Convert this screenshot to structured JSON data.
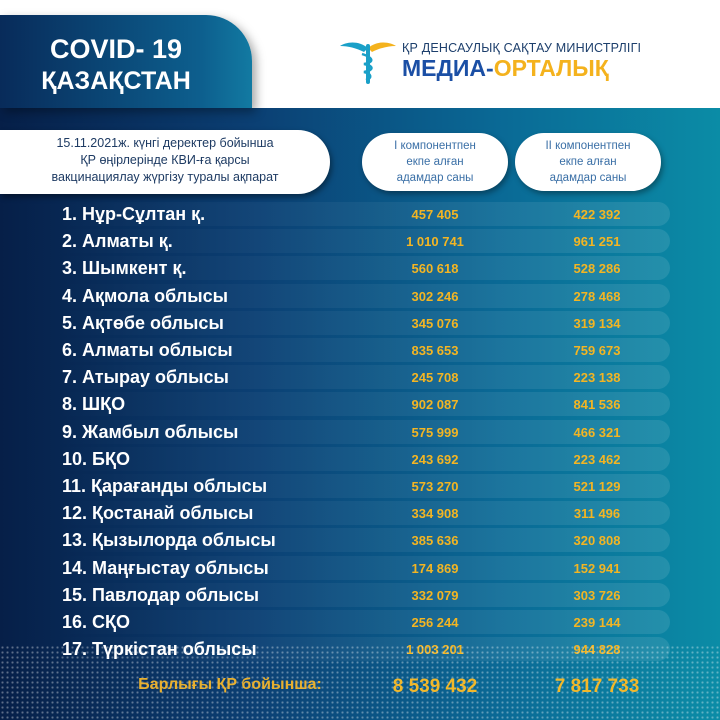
{
  "header": {
    "covid_line1": "COVID- 19",
    "covid_line2": "ҚАЗАҚСТАН",
    "ministry": "ҚР ДЕНСАУЛЫҚ САҚТАУ МИНИСТРЛІГІ",
    "media_part1": "МЕДИА-",
    "media_part2": "ОРТАЛЫҚ"
  },
  "info": {
    "line1": "15.11.2021ж. күнгі деректер бойынша",
    "line2": "ҚР өңірлерінде КВИ-ға қарсы",
    "line3": "вакцинациялау жүргізу туралы ақпарат"
  },
  "columns": [
    {
      "line1": "I компонентпен",
      "line2": "екпе алған",
      "line3": "адамдар саны"
    },
    {
      "line1": "II компонентпен",
      "line2": "екпе алған",
      "line3": "адамдар саны"
    }
  ],
  "rows": [
    {
      "name": "1. Нұр-Сұлтан қ.",
      "first": "457 405",
      "second": "422 392"
    },
    {
      "name": "2. Алматы қ.",
      "first": "1 010 741",
      "second": "961 251"
    },
    {
      "name": "3. Шымкент қ.",
      "first": "560 618",
      "second": "528 286"
    },
    {
      "name": "4. Ақмола облысы",
      "first": "302 246",
      "second": "278 468"
    },
    {
      "name": "5. Ақтөбе облысы",
      "first": "345 076",
      "second": "319 134"
    },
    {
      "name": "6. Алматы облысы",
      "first": "835 653",
      "second": "759 673"
    },
    {
      "name": "7. Атырау облысы",
      "first": "245 708",
      "second": "223 138"
    },
    {
      "name": "8. ШҚО",
      "first": "902 087",
      "second": "841 536"
    },
    {
      "name": "9. Жамбыл облысы",
      "first": "575 999",
      "second": "466 321"
    },
    {
      "name": "10. БҚО",
      "first": "243 692",
      "second": "223 462"
    },
    {
      "name": "11. Қарағанды облысы",
      "first": "573 270",
      "second": "521 129"
    },
    {
      "name": "12. Қостанай облысы",
      "first": "334 908",
      "second": "311 496"
    },
    {
      "name": "13. Қызылорда облысы",
      "first": "385 636",
      "second": "320 808"
    },
    {
      "name": "14. Маңғыстау облысы",
      "first": "174 869",
      "second": "152 941"
    },
    {
      "name": "15. Павлодар облысы",
      "first": "332 079",
      "second": "303 726"
    },
    {
      "name": "16. СҚО",
      "first": "256 244",
      "second": "239 144"
    },
    {
      "name": "17. Түркістан облысы",
      "first": "1 003 201",
      "second": "944 828"
    }
  ],
  "total": {
    "label": "Барлығы ҚР бойынша:",
    "first": "8 539 432",
    "second": "7 817 733"
  },
  "colors": {
    "accent": "#f3b523",
    "navy": "#061f48",
    "teal": "#0b8ca6"
  }
}
